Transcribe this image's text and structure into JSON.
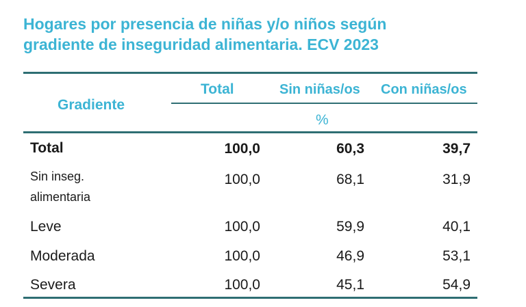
{
  "title": {
    "line1": "Hogares por presencia de niñas y/o niños según",
    "line2": "gradiente de inseguridad alimentaria. ECV 2023"
  },
  "columns": {
    "gradiente": "Gradiente",
    "total": "Total",
    "sin": "Sin niñas/os",
    "con": "Con niñas/os",
    "unit": "%"
  },
  "rows": [
    {
      "label": "Total",
      "total": "100,0",
      "sin": "60,3",
      "con": "39,7"
    },
    {
      "label_line1": "Sin inseg.",
      "label_line2": "alimentaria",
      "total": "100,0",
      "sin": "68,1",
      "con": "31,9"
    },
    {
      "label": "Leve",
      "total": "100,0",
      "sin": "59,9",
      "con": "40,1"
    },
    {
      "label": "Moderada",
      "total": "100,0",
      "sin": "46,9",
      "con": "53,1"
    },
    {
      "label": "Severa",
      "total": "100,0",
      "sin": "45,1",
      "con": "54,9"
    }
  ],
  "colors": {
    "accent": "#3cb4d4",
    "rule": "#2e6e73",
    "text": "#1a1a1a"
  }
}
